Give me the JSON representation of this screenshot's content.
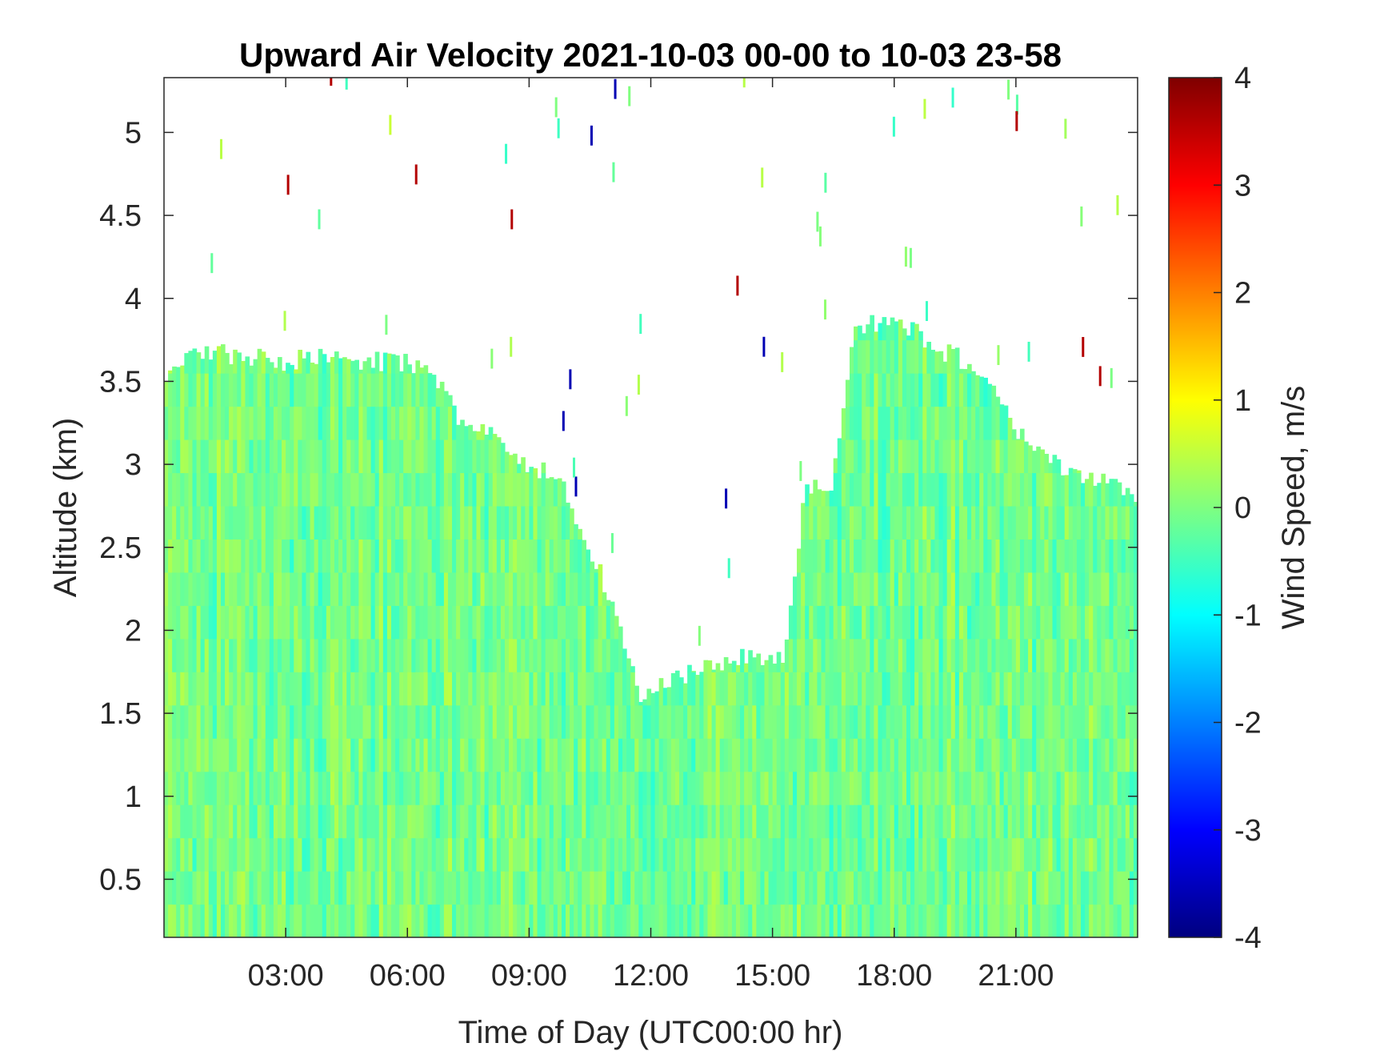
{
  "chart_data": {
    "type": "heatmap",
    "title": "Upward Air Velocity 2021-10-03 00-00 to 10-03 23-58",
    "xlabel": "Time of Day (UTC00:00 hr)",
    "ylabel": "Altitude (km)",
    "colorbar_label": "Wind Speed, m/s",
    "colormap": "jet",
    "x_ticks": [
      "03:00",
      "06:00",
      "09:00",
      "12:00",
      "15:00",
      "18:00",
      "21:00"
    ],
    "x_tick_hours": [
      3,
      6,
      9,
      12,
      15,
      18,
      21
    ],
    "xlim_hours": [
      0,
      24
    ],
    "y_ticks": [
      "0.5",
      "1",
      "1.5",
      "2",
      "2.5",
      "3",
      "3.5",
      "4",
      "4.5",
      "5"
    ],
    "y_tick_values": [
      0.5,
      1,
      1.5,
      2,
      2.5,
      3,
      3.5,
      4,
      4.5,
      5
    ],
    "ylim_km": [
      0.15,
      5.33
    ],
    "colorbar_ticks": [
      "4",
      "3",
      "2",
      "1",
      "0",
      "-1",
      "-2",
      "-3",
      "-4"
    ],
    "clim": [
      -4,
      4
    ],
    "data_top_profile": {
      "description_units": "hour, top altitude km",
      "points": [
        [
          0,
          3.55
        ],
        [
          1,
          3.68
        ],
        [
          2,
          3.65
        ],
        [
          3,
          3.62
        ],
        [
          4,
          3.65
        ],
        [
          5,
          3.62
        ],
        [
          6,
          3.62
        ],
        [
          6.7,
          3.5
        ],
        [
          7.2,
          3.3
        ],
        [
          8,
          3.2
        ],
        [
          9,
          3.0
        ],
        [
          9.8,
          2.9
        ],
        [
          10.3,
          2.6
        ],
        [
          11,
          2.2
        ],
        [
          11.7,
          1.6
        ],
        [
          12.5,
          1.7
        ],
        [
          13.5,
          1.8
        ],
        [
          14.5,
          1.85
        ],
        [
          15.3,
          1.85
        ],
        [
          15.8,
          2.85
        ],
        [
          16.5,
          2.9
        ],
        [
          17,
          3.8
        ],
        [
          18,
          3.9
        ],
        [
          19,
          3.7
        ],
        [
          20,
          3.6
        ],
        [
          21,
          3.2
        ],
        [
          22,
          3.0
        ],
        [
          23,
          2.9
        ],
        [
          24,
          2.8
        ]
      ]
    },
    "dominant_value_range_m_s": [
      -1,
      1
    ]
  }
}
